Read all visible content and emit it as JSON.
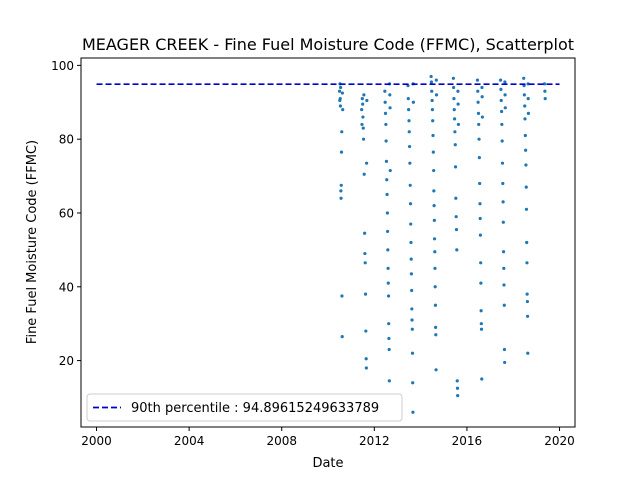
{
  "chart_data": {
    "type": "scatter",
    "title": "MEAGER CREEK - Fine Fuel Moisture Code (FFMC), Scatterplot",
    "xlabel": "Date",
    "ylabel": "Fine Fuel Moisture Code (FFMC)",
    "xlim": [
      "1999-05-01",
      "2020-09-01"
    ],
    "ylim": [
      2,
      102
    ],
    "xticks": [
      "2000",
      "2004",
      "2008",
      "2012",
      "2016",
      "2020"
    ],
    "yticks": [
      20,
      40,
      60,
      80,
      100
    ],
    "grid": false,
    "legend_position": "lower-left",
    "reference_line": {
      "label": "90th percentile : 94.89615249633789",
      "value": 94.89615249633789,
      "x_range": [
        "2000-01-01",
        "2020-01-01"
      ],
      "style": "dashed",
      "color": "#0000cc"
    },
    "series": [
      {
        "color": "#1f77b4",
        "points": [
          [
            "2010-07-01",
            93.0
          ],
          [
            "2010-07-05",
            90.5
          ],
          [
            "2010-07-08",
            95.0
          ],
          [
            "2010-07-12",
            91.0
          ],
          [
            "2010-07-15",
            89.0
          ],
          [
            "2010-07-18",
            94.0
          ],
          [
            "2010-07-22",
            66.0
          ],
          [
            "2010-07-25",
            64.0
          ],
          [
            "2010-07-28",
            67.5
          ],
          [
            "2010-08-01",
            76.5
          ],
          [
            "2010-08-05",
            82.0
          ],
          [
            "2010-08-08",
            37.5
          ],
          [
            "2010-08-12",
            26.5
          ],
          [
            "2010-08-15",
            92.5
          ],
          [
            "2010-08-20",
            88.0
          ],
          [
            "2011-06-15",
            88.0
          ],
          [
            "2011-06-20",
            84.0
          ],
          [
            "2011-06-25",
            91.0
          ],
          [
            "2011-07-01",
            89.5
          ],
          [
            "2011-07-05",
            86.0
          ],
          [
            "2011-07-10",
            83.0
          ],
          [
            "2011-07-15",
            80.0
          ],
          [
            "2011-07-20",
            92.0
          ],
          [
            "2011-07-25",
            70.5
          ],
          [
            "2011-08-01",
            54.5
          ],
          [
            "2011-08-05",
            49.0
          ],
          [
            "2011-08-10",
            46.5
          ],
          [
            "2011-08-15",
            38.0
          ],
          [
            "2011-08-20",
            28.0
          ],
          [
            "2011-08-25",
            20.5
          ],
          [
            "2011-08-28",
            18.0
          ],
          [
            "2011-09-01",
            73.5
          ],
          [
            "2011-09-05",
            90.5
          ],
          [
            "2012-06-15",
            93.0
          ],
          [
            "2012-06-20",
            90.0
          ],
          [
            "2012-06-25",
            87.0
          ],
          [
            "2012-07-01",
            84.0
          ],
          [
            "2012-07-05",
            79.5
          ],
          [
            "2012-07-10",
            74.0
          ],
          [
            "2012-07-15",
            69.0
          ],
          [
            "2012-07-20",
            65.0
          ],
          [
            "2012-07-25",
            60.0
          ],
          [
            "2012-07-28",
            55.0
          ],
          [
            "2012-08-01",
            50.0
          ],
          [
            "2012-08-05",
            45.0
          ],
          [
            "2012-08-08",
            41.0
          ],
          [
            "2012-08-12",
            37.5
          ],
          [
            "2012-08-15",
            30.0
          ],
          [
            "2012-08-18",
            26.0
          ],
          [
            "2012-08-22",
            23.0
          ],
          [
            "2012-08-25",
            14.5
          ],
          [
            "2012-08-28",
            95.0
          ],
          [
            "2012-09-01",
            92.0
          ],
          [
            "2012-09-05",
            88.5
          ],
          [
            "2012-09-08",
            71.5
          ],
          [
            "2013-06-15",
            94.5
          ],
          [
            "2013-06-20",
            91.0
          ],
          [
            "2013-06-25",
            88.0
          ],
          [
            "2013-07-01",
            85.0
          ],
          [
            "2013-07-05",
            82.0
          ],
          [
            "2013-07-10",
            78.0
          ],
          [
            "2013-07-15",
            73.5
          ],
          [
            "2013-07-20",
            67.5
          ],
          [
            "2013-07-25",
            62.5
          ],
          [
            "2013-07-28",
            57.0
          ],
          [
            "2013-08-01",
            52.0
          ],
          [
            "2013-08-05",
            47.5
          ],
          [
            "2013-08-08",
            43.5
          ],
          [
            "2013-08-12",
            39.0
          ],
          [
            "2013-08-15",
            34.0
          ],
          [
            "2013-08-18",
            31.0
          ],
          [
            "2013-08-22",
            28.5
          ],
          [
            "2013-08-25",
            22.0
          ],
          [
            "2013-08-28",
            14.0
          ],
          [
            "2013-09-01",
            6.0
          ],
          [
            "2013-09-05",
            95.0
          ],
          [
            "2013-09-08",
            90.0
          ],
          [
            "2014-06-15",
            97.0
          ],
          [
            "2014-06-20",
            95.5
          ],
          [
            "2014-06-25",
            93.0
          ],
          [
            "2014-07-01",
            90.5
          ],
          [
            "2014-07-05",
            88.0
          ],
          [
            "2014-07-10",
            85.0
          ],
          [
            "2014-07-15",
            81.0
          ],
          [
            "2014-07-20",
            76.5
          ],
          [
            "2014-07-25",
            71.5
          ],
          [
            "2014-07-28",
            66.0
          ],
          [
            "2014-08-01",
            62.0
          ],
          [
            "2014-08-05",
            58.0
          ],
          [
            "2014-08-08",
            53.0
          ],
          [
            "2014-08-12",
            49.5
          ],
          [
            "2014-08-15",
            45.0
          ],
          [
            "2014-08-18",
            40.0
          ],
          [
            "2014-08-22",
            35.0
          ],
          [
            "2014-08-25",
            29.0
          ],
          [
            "2014-08-28",
            27.0
          ],
          [
            "2014-09-01",
            17.5
          ],
          [
            "2014-09-05",
            96.0
          ],
          [
            "2014-09-08",
            92.0
          ],
          [
            "2015-06-01",
            96.5
          ],
          [
            "2015-06-05",
            94.0
          ],
          [
            "2015-06-10",
            91.0
          ],
          [
            "2015-06-15",
            88.0
          ],
          [
            "2015-06-20",
            85.5
          ],
          [
            "2015-06-25",
            82.0
          ],
          [
            "2015-07-01",
            78.5
          ],
          [
            "2015-07-05",
            72.5
          ],
          [
            "2015-07-10",
            64.0
          ],
          [
            "2015-07-15",
            59.0
          ],
          [
            "2015-07-20",
            55.5
          ],
          [
            "2015-07-25",
            50.0
          ],
          [
            "2015-08-01",
            14.5
          ],
          [
            "2015-08-05",
            12.5
          ],
          [
            "2015-08-08",
            10.5
          ],
          [
            "2015-08-12",
            93.0
          ],
          [
            "2015-08-15",
            89.5
          ],
          [
            "2015-08-20",
            84.0
          ],
          [
            "2016-06-15",
            96.0
          ],
          [
            "2016-06-20",
            93.0
          ],
          [
            "2016-06-25",
            90.0
          ],
          [
            "2016-07-01",
            87.0
          ],
          [
            "2016-07-05",
            84.0
          ],
          [
            "2016-07-10",
            80.0
          ],
          [
            "2016-07-15",
            75.0
          ],
          [
            "2016-07-20",
            68.0
          ],
          [
            "2016-07-25",
            62.5
          ],
          [
            "2016-07-28",
            58.5
          ],
          [
            "2016-08-01",
            54.0
          ],
          [
            "2016-08-05",
            46.5
          ],
          [
            "2016-08-08",
            41.0
          ],
          [
            "2016-08-12",
            33.5
          ],
          [
            "2016-08-15",
            30.0
          ],
          [
            "2016-08-18",
            28.5
          ],
          [
            "2016-08-22",
            15.0
          ],
          [
            "2016-08-25",
            94.0
          ],
          [
            "2016-08-28",
            91.5
          ],
          [
            "2016-09-01",
            86.0
          ],
          [
            "2017-06-15",
            96.0
          ],
          [
            "2017-06-20",
            93.5
          ],
          [
            "2017-06-25",
            90.5
          ],
          [
            "2017-07-01",
            87.5
          ],
          [
            "2017-07-05",
            84.0
          ],
          [
            "2017-07-10",
            79.5
          ],
          [
            "2017-07-15",
            73.5
          ],
          [
            "2017-07-20",
            68.0
          ],
          [
            "2017-07-25",
            63.0
          ],
          [
            "2017-07-28",
            57.5
          ],
          [
            "2017-08-01",
            49.5
          ],
          [
            "2017-08-05",
            45.0
          ],
          [
            "2017-08-08",
            40.5
          ],
          [
            "2017-08-12",
            35.0
          ],
          [
            "2017-08-15",
            23.0
          ],
          [
            "2017-08-18",
            19.5
          ],
          [
            "2017-08-22",
            95.5
          ],
          [
            "2017-08-25",
            92.0
          ],
          [
            "2017-08-28",
            88.5
          ],
          [
            "2018-06-15",
            96.5
          ],
          [
            "2018-06-20",
            94.5
          ],
          [
            "2018-06-25",
            92.0
          ],
          [
            "2018-07-01",
            89.0
          ],
          [
            "2018-07-05",
            85.5
          ],
          [
            "2018-07-10",
            81.0
          ],
          [
            "2018-07-15",
            77.0
          ],
          [
            "2018-07-20",
            73.0
          ],
          [
            "2018-07-25",
            67.0
          ],
          [
            "2018-07-28",
            61.0
          ],
          [
            "2018-08-01",
            52.0
          ],
          [
            "2018-08-05",
            46.5
          ],
          [
            "2018-08-08",
            38.0
          ],
          [
            "2018-08-12",
            36.0
          ],
          [
            "2018-08-15",
            32.0
          ],
          [
            "2018-08-18",
            22.0
          ],
          [
            "2018-08-22",
            95.0
          ],
          [
            "2018-08-25",
            91.0
          ],
          [
            "2018-08-28",
            87.0
          ],
          [
            "2019-05-10",
            95.0
          ],
          [
            "2019-05-15",
            93.0
          ],
          [
            "2019-05-20",
            91.0
          ]
        ]
      }
    ]
  }
}
